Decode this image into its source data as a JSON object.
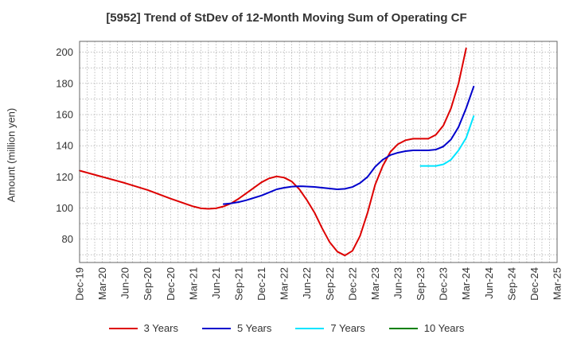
{
  "chart_data": {
    "type": "line",
    "title": "[5952]  Trend of StDev of 12-Month Moving Sum of Operating CF",
    "xlabel": "",
    "ylabel": "Amount (million yen)",
    "ylim": [
      65,
      207
    ],
    "yticks": [
      80,
      100,
      120,
      140,
      160,
      180,
      200
    ],
    "x_start": "Dec-19",
    "x_end": "Mar-25",
    "categories": [
      "Dec-19",
      "Mar-20",
      "Jun-20",
      "Sep-20",
      "Dec-20",
      "Mar-21",
      "Jun-21",
      "Sep-21",
      "Dec-21",
      "Mar-22",
      "Jun-22",
      "Sep-22",
      "Dec-22",
      "Mar-23",
      "Jun-23",
      "Sep-23",
      "Dec-23",
      "Mar-24",
      "Jun-24",
      "Sep-24",
      "Dec-24",
      "Mar-25"
    ],
    "grid": true,
    "legend_position": "bottom",
    "series": [
      {
        "name": "3 Years",
        "color": "#dd0000",
        "points": [
          [
            "Dec-19",
            124
          ],
          [
            "Mar-20",
            120
          ],
          [
            "Jun-20",
            116
          ],
          [
            "Sep-20",
            111.5
          ],
          [
            "Dec-20",
            106
          ],
          [
            "Mar-21",
            101
          ],
          [
            "Apr-21",
            99.8
          ],
          [
            "May-21",
            99.5
          ],
          [
            "Jun-21",
            99.8
          ],
          [
            "Jul-21",
            101
          ],
          [
            "Aug-21",
            103
          ],
          [
            "Sep-21",
            106
          ],
          [
            "Oct-21",
            109.5
          ],
          [
            "Nov-21",
            113
          ],
          [
            "Dec-21",
            116.5
          ],
          [
            "Jan-22",
            119
          ],
          [
            "Feb-22",
            120.3
          ],
          [
            "Mar-22",
            119.5
          ],
          [
            "Apr-22",
            117
          ],
          [
            "May-22",
            112
          ],
          [
            "Jun-22",
            105
          ],
          [
            "Jul-22",
            97
          ],
          [
            "Aug-22",
            87
          ],
          [
            "Sep-22",
            78
          ],
          [
            "Oct-22",
            72
          ],
          [
            "Nov-22",
            69.5
          ],
          [
            "Dec-22",
            72.5
          ],
          [
            "Jan-23",
            82
          ],
          [
            "Feb-23",
            97
          ],
          [
            "Mar-23",
            115
          ],
          [
            "Apr-23",
            127
          ],
          [
            "May-23",
            136
          ],
          [
            "Jun-23",
            141
          ],
          [
            "Jul-23",
            143.5
          ],
          [
            "Aug-23",
            144.5
          ],
          [
            "Sep-23",
            144.5
          ],
          [
            "Oct-23",
            144.5
          ],
          [
            "Nov-23",
            147
          ],
          [
            "Dec-23",
            153
          ],
          [
            "Jan-24",
            164
          ],
          [
            "Feb-24",
            180
          ],
          [
            "Mar-24",
            202.5
          ]
        ]
      },
      {
        "name": "5 Years",
        "color": "#0000cc",
        "points": [
          [
            "Jul-21",
            102.5
          ],
          [
            "Aug-21",
            103
          ],
          [
            "Sep-21",
            103.8
          ],
          [
            "Oct-21",
            105
          ],
          [
            "Nov-21",
            106.5
          ],
          [
            "Dec-21",
            108
          ],
          [
            "Jan-22",
            110
          ],
          [
            "Feb-22",
            112
          ],
          [
            "Mar-22",
            113
          ],
          [
            "Apr-22",
            113.7
          ],
          [
            "May-22",
            114
          ],
          [
            "Jun-22",
            113.8
          ],
          [
            "Jul-22",
            113.5
          ],
          [
            "Aug-22",
            113
          ],
          [
            "Sep-22",
            112.5
          ],
          [
            "Oct-22",
            112
          ],
          [
            "Nov-22",
            112.3
          ],
          [
            "Dec-22",
            113.5
          ],
          [
            "Jan-23",
            116
          ],
          [
            "Feb-23",
            120
          ],
          [
            "Mar-23",
            126.5
          ],
          [
            "Apr-23",
            131
          ],
          [
            "May-23",
            134
          ],
          [
            "Jun-23",
            135.5
          ],
          [
            "Jul-23",
            136.5
          ],
          [
            "Aug-23",
            137
          ],
          [
            "Sep-23",
            137
          ],
          [
            "Oct-23",
            137
          ],
          [
            "Nov-23",
            137.5
          ],
          [
            "Dec-23",
            139.5
          ],
          [
            "Jan-24",
            144
          ],
          [
            "Feb-24",
            152
          ],
          [
            "Mar-24",
            164
          ],
          [
            "Apr-24",
            178
          ]
        ]
      },
      {
        "name": "7 Years",
        "color": "#00e5ff",
        "points": [
          [
            "Sep-23",
            127
          ],
          [
            "Oct-23",
            127
          ],
          [
            "Nov-23",
            127
          ],
          [
            "Dec-23",
            128
          ],
          [
            "Jan-24",
            131
          ],
          [
            "Feb-24",
            137
          ],
          [
            "Mar-24",
            145
          ],
          [
            "Apr-24",
            159
          ]
        ]
      },
      {
        "name": "10 Years",
        "color": "#008000",
        "points": []
      }
    ]
  }
}
